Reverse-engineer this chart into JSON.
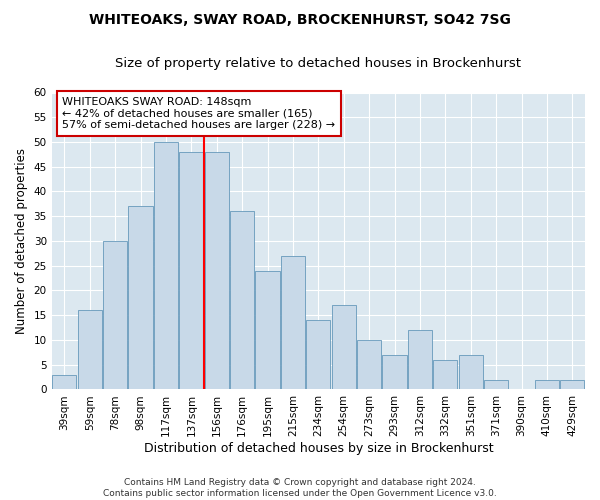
{
  "title": "WHITEOAKS, SWAY ROAD, BROCKENHURST, SO42 7SG",
  "subtitle": "Size of property relative to detached houses in Brockenhurst",
  "xlabel": "Distribution of detached houses by size in Brockenhurst",
  "ylabel": "Number of detached properties",
  "categories": [
    "39sqm",
    "59sqm",
    "78sqm",
    "98sqm",
    "117sqm",
    "137sqm",
    "156sqm",
    "176sqm",
    "195sqm",
    "215sqm",
    "234sqm",
    "254sqm",
    "273sqm",
    "293sqm",
    "312sqm",
    "332sqm",
    "351sqm",
    "371sqm",
    "390sqm",
    "410sqm",
    "429sqm"
  ],
  "values": [
    3,
    16,
    30,
    37,
    50,
    48,
    48,
    36,
    24,
    27,
    14,
    17,
    10,
    7,
    12,
    6,
    7,
    2,
    0,
    2,
    2
  ],
  "bar_color": "#c8d9e8",
  "bar_edge_color": "#6699bb",
  "background_color": "#dce8f0",
  "fig_background_color": "#ffffff",
  "grid_color": "#ffffff",
  "annotation_text_line1": "WHITEOAKS SWAY ROAD: 148sqm",
  "annotation_text_line2": "← 42% of detached houses are smaller (165)",
  "annotation_text_line3": "57% of semi-detached houses are larger (228) →",
  "annotation_box_color": "#ffffff",
  "annotation_box_edge": "#cc0000",
  "red_line_x": 5.5,
  "ylim": [
    0,
    60
  ],
  "yticks": [
    0,
    5,
    10,
    15,
    20,
    25,
    30,
    35,
    40,
    45,
    50,
    55,
    60
  ],
  "footer_line1": "Contains HM Land Registry data © Crown copyright and database right 2024.",
  "footer_line2": "Contains public sector information licensed under the Open Government Licence v3.0.",
  "title_fontsize": 10,
  "subtitle_fontsize": 9.5,
  "xlabel_fontsize": 9,
  "ylabel_fontsize": 8.5,
  "tick_fontsize": 7.5,
  "annotation_fontsize": 8,
  "footer_fontsize": 6.5
}
